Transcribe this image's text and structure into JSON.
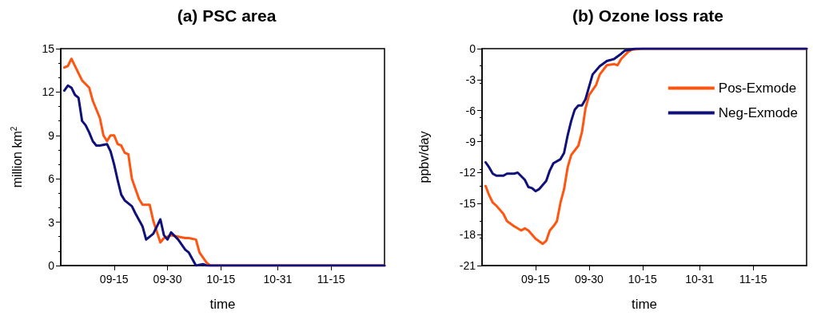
{
  "chart_data": [
    {
      "type": "line",
      "title": "(a) PSC area",
      "xlabel": "time",
      "ylabel": "million km$^{2}$",
      "xlim": [
        "--08-31",
        "--11-30"
      ],
      "xticks": [
        {
          "value": "--09-15",
          "label": "09-15"
        },
        {
          "value": "--09-30",
          "label": "09-30"
        },
        {
          "value": "--10-15",
          "label": "10-15"
        },
        {
          "value": "--10-31",
          "label": "10-31"
        },
        {
          "value": "--11-15",
          "label": "11-15"
        }
      ],
      "ylim": [
        0,
        15
      ],
      "yticks": [
        0,
        3,
        6,
        9,
        12,
        15
      ],
      "grid": false,
      "legend": false,
      "marker": "none",
      "line_style": "solid",
      "series": [
        {
          "color": "#ff5511",
          "x": [
            "--09-01",
            "--09-02",
            "--09-03",
            "--09-05",
            "--09-06",
            "--09-08",
            "--09-09",
            "--09-11",
            "--09-12",
            "--09-13",
            "--09-14",
            "--09-15",
            "--09-16",
            "--09-17",
            "--09-18",
            "--09-19",
            "--09-20",
            "--09-22",
            "--09-23",
            "--09-25",
            "--09-26",
            "--09-28",
            "--09-29",
            "--10-01",
            "--10-05",
            "--10-06",
            "--10-08",
            "--10-09",
            "--10-11",
            "--10-12",
            "--11-30"
          ],
          "values": [
            13.7,
            13.8,
            14.3,
            13.3,
            12.8,
            12.3,
            11.4,
            10.2,
            9.0,
            8.6,
            9.0,
            9.0,
            8.4,
            8.3,
            7.8,
            7.7,
            6.0,
            4.6,
            4.2,
            4.2,
            3.1,
            1.6,
            1.9,
            2.1,
            1.9,
            1.9,
            1.8,
            0.9,
            0.2,
            0,
            0
          ]
        },
        {
          "color": "#10107a",
          "x": [
            "--09-01",
            "--09-02",
            "--09-03",
            "--09-04",
            "--09-05",
            "--09-06",
            "--09-07",
            "--09-08",
            "--09-09",
            "--09-10",
            "--09-11",
            "--09-13",
            "--09-14",
            "--09-15",
            "--09-16",
            "--09-17",
            "--09-18",
            "--09-20",
            "--09-21",
            "--09-23",
            "--09-24",
            "--09-26",
            "--09-27",
            "--09-28",
            "--09-29",
            "--09-30",
            "--10-01",
            "--10-03",
            "--10-05",
            "--10-06",
            "--10-08",
            "--10-10",
            "--10-11",
            "--11-30"
          ],
          "values": [
            12.1,
            12.45,
            12.3,
            11.8,
            11.6,
            10.0,
            9.7,
            9.2,
            8.6,
            8.3,
            8.3,
            8.4,
            7.9,
            7.0,
            5.9,
            4.9,
            4.5,
            4.1,
            3.6,
            2.7,
            1.8,
            2.2,
            2.7,
            3.2,
            2.1,
            1.8,
            2.3,
            1.8,
            1.1,
            0.9,
            0,
            0.1,
            0,
            0
          ]
        }
      ]
    },
    {
      "type": "line",
      "title": "(b) Ozone loss rate",
      "xlabel": "time",
      "ylabel": "ppbv/day",
      "xlim": [
        "--08-31",
        "--11-30"
      ],
      "xticks": [
        {
          "value": "--09-15",
          "label": "09-15"
        },
        {
          "value": "--09-30",
          "label": "09-30"
        },
        {
          "value": "--10-15",
          "label": "10-15"
        },
        {
          "value": "--10-31",
          "label": "10-31"
        },
        {
          "value": "--11-15",
          "label": "11-15"
        }
      ],
      "ylim": [
        -21,
        0
      ],
      "yticks": [
        -21,
        -18,
        -15,
        -12,
        -9,
        -6,
        -3,
        0
      ],
      "grid": false,
      "legend": "top right",
      "marker": "none",
      "line_style": "solid",
      "series": [
        {
          "name": "Pos-Exmode",
          "color": "#ff5511",
          "x": [
            "--09-01",
            "--09-02",
            "--09-03",
            "--09-04",
            "--09-06",
            "--09-07",
            "--09-09",
            "--09-11",
            "--09-12",
            "--09-13",
            "--09-15",
            "--09-17",
            "--09-18",
            "--09-19",
            "--09-20",
            "--09-21",
            "--09-22",
            "--09-23",
            "--09-24",
            "--09-25",
            "--09-27",
            "--09-28",
            "--09-29",
            "--09-30",
            "--10-02",
            "--10-03",
            "--10-05",
            "--10-07",
            "--10-08",
            "--10-09",
            "--10-11",
            "--10-12",
            "--10-15",
            "--11-30"
          ],
          "values": [
            -13.3,
            -14.2,
            -14.9,
            -15.2,
            -16.0,
            -16.7,
            -17.2,
            -17.6,
            -17.4,
            -17.6,
            -18.4,
            -18.9,
            -18.6,
            -17.6,
            -17.2,
            -16.7,
            -14.9,
            -13.6,
            -11.5,
            -10.3,
            -9.4,
            -8.1,
            -5.8,
            -4.5,
            -3.5,
            -2.5,
            -1.6,
            -1.5,
            -1.6,
            -1.0,
            -0.3,
            -0.1,
            0,
            0
          ]
        },
        {
          "name": "Neg-Exmode",
          "color": "#10107a",
          "x": [
            "--09-01",
            "--09-02",
            "--09-03",
            "--09-04",
            "--09-06",
            "--09-07",
            "--09-09",
            "--09-10",
            "--09-12",
            "--09-13",
            "--09-14",
            "--09-15",
            "--09-16",
            "--09-18",
            "--09-19",
            "--09-20",
            "--09-22",
            "--09-23",
            "--09-24",
            "--09-25",
            "--09-26",
            "--09-27",
            "--09-28",
            "--09-29",
            "--09-30",
            "--10-01",
            "--10-03",
            "--10-05",
            "--10-07",
            "--10-09",
            "--10-10",
            "--10-13",
            "--11-30"
          ],
          "values": [
            -11.0,
            -11.5,
            -12.1,
            -12.3,
            -12.3,
            -12.1,
            -12.1,
            -12.0,
            -12.7,
            -13.4,
            -13.5,
            -13.8,
            -13.6,
            -12.8,
            -11.8,
            -11.1,
            -10.7,
            -10.1,
            -8.4,
            -7.0,
            -5.9,
            -5.5,
            -5.5,
            -4.9,
            -3.7,
            -2.5,
            -1.7,
            -1.2,
            -1.0,
            -0.5,
            -0.2,
            0,
            0
          ]
        }
      ]
    }
  ]
}
